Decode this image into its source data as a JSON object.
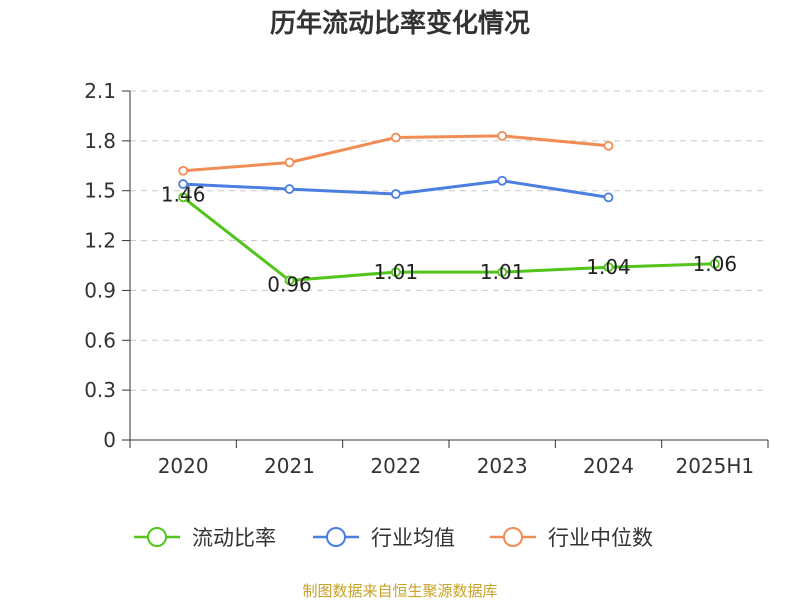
{
  "chart_data": {
    "type": "line",
    "title": "历年流动比率变化情况",
    "categories": [
      "2020",
      "2021",
      "2022",
      "2023",
      "2024",
      "2025H1"
    ],
    "ylim": [
      0,
      2.1
    ],
    "yticks": [
      "0",
      "0.3",
      "0.6",
      "0.9",
      "1.2",
      "1.5",
      "1.8",
      "2.1"
    ],
    "grid": true,
    "legend_position": "bottom",
    "series": [
      {
        "name": "流动比率",
        "color": "#52c41a",
        "values": [
          1.46,
          0.96,
          1.01,
          1.01,
          1.04,
          1.06
        ],
        "labels": [
          "1.46",
          "0.96",
          "1.01",
          "1.01",
          "1.04",
          "1.06"
        ]
      },
      {
        "name": "行业均值",
        "color": "#4a7ee0",
        "values": [
          1.54,
          1.51,
          1.48,
          1.56,
          1.46,
          null
        ]
      },
      {
        "name": "行业中位数",
        "color": "#f28c55",
        "values": [
          1.62,
          1.67,
          1.82,
          1.83,
          1.77,
          null
        ]
      }
    ],
    "source": "制图数据来自恒生聚源数据库"
  }
}
